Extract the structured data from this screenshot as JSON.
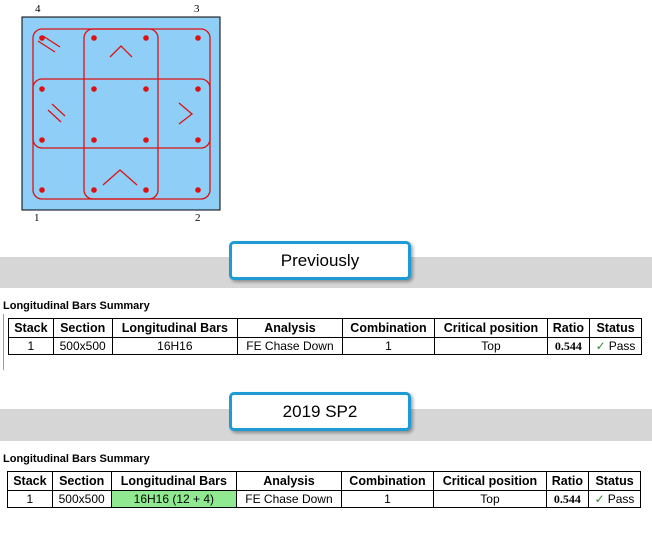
{
  "diagram": {
    "corners": [
      "4",
      "3",
      "1",
      "2"
    ],
    "fill_color": "#8fcef7",
    "rebar_color": "#dd1111"
  },
  "previous": {
    "callout": "Previously",
    "summary_title": "Longitudinal Bars Summary",
    "headers": [
      "Stack",
      "Section",
      "Longitudinal Bars",
      "Analysis",
      "Combination",
      "Critical position",
      "Ratio",
      "Status"
    ],
    "row": {
      "stack": "1",
      "section": "500x500",
      "bars": "16H16",
      "analysis": "FE Chase Down",
      "combination": "1",
      "position": "Top",
      "ratio": "0.544",
      "status": "Pass"
    }
  },
  "current": {
    "callout": "2019 SP2",
    "summary_title": "Longitudinal Bars Summary",
    "headers": [
      "Stack",
      "Section",
      "Longitudinal Bars",
      "Analysis",
      "Combination",
      "Critical position",
      "Ratio",
      "Status"
    ],
    "row": {
      "stack": "1",
      "section": "500x500",
      "bars": "16H16 (12 + 4)",
      "analysis": "FE Chase Down",
      "combination": "1",
      "position": "Top",
      "ratio": "0.544",
      "status": "Pass"
    }
  },
  "colors": {
    "callout_border": "#1e9bd4",
    "band": "#d6d6d6",
    "highlight": "#90e890",
    "pass": "#2e8b2e"
  }
}
